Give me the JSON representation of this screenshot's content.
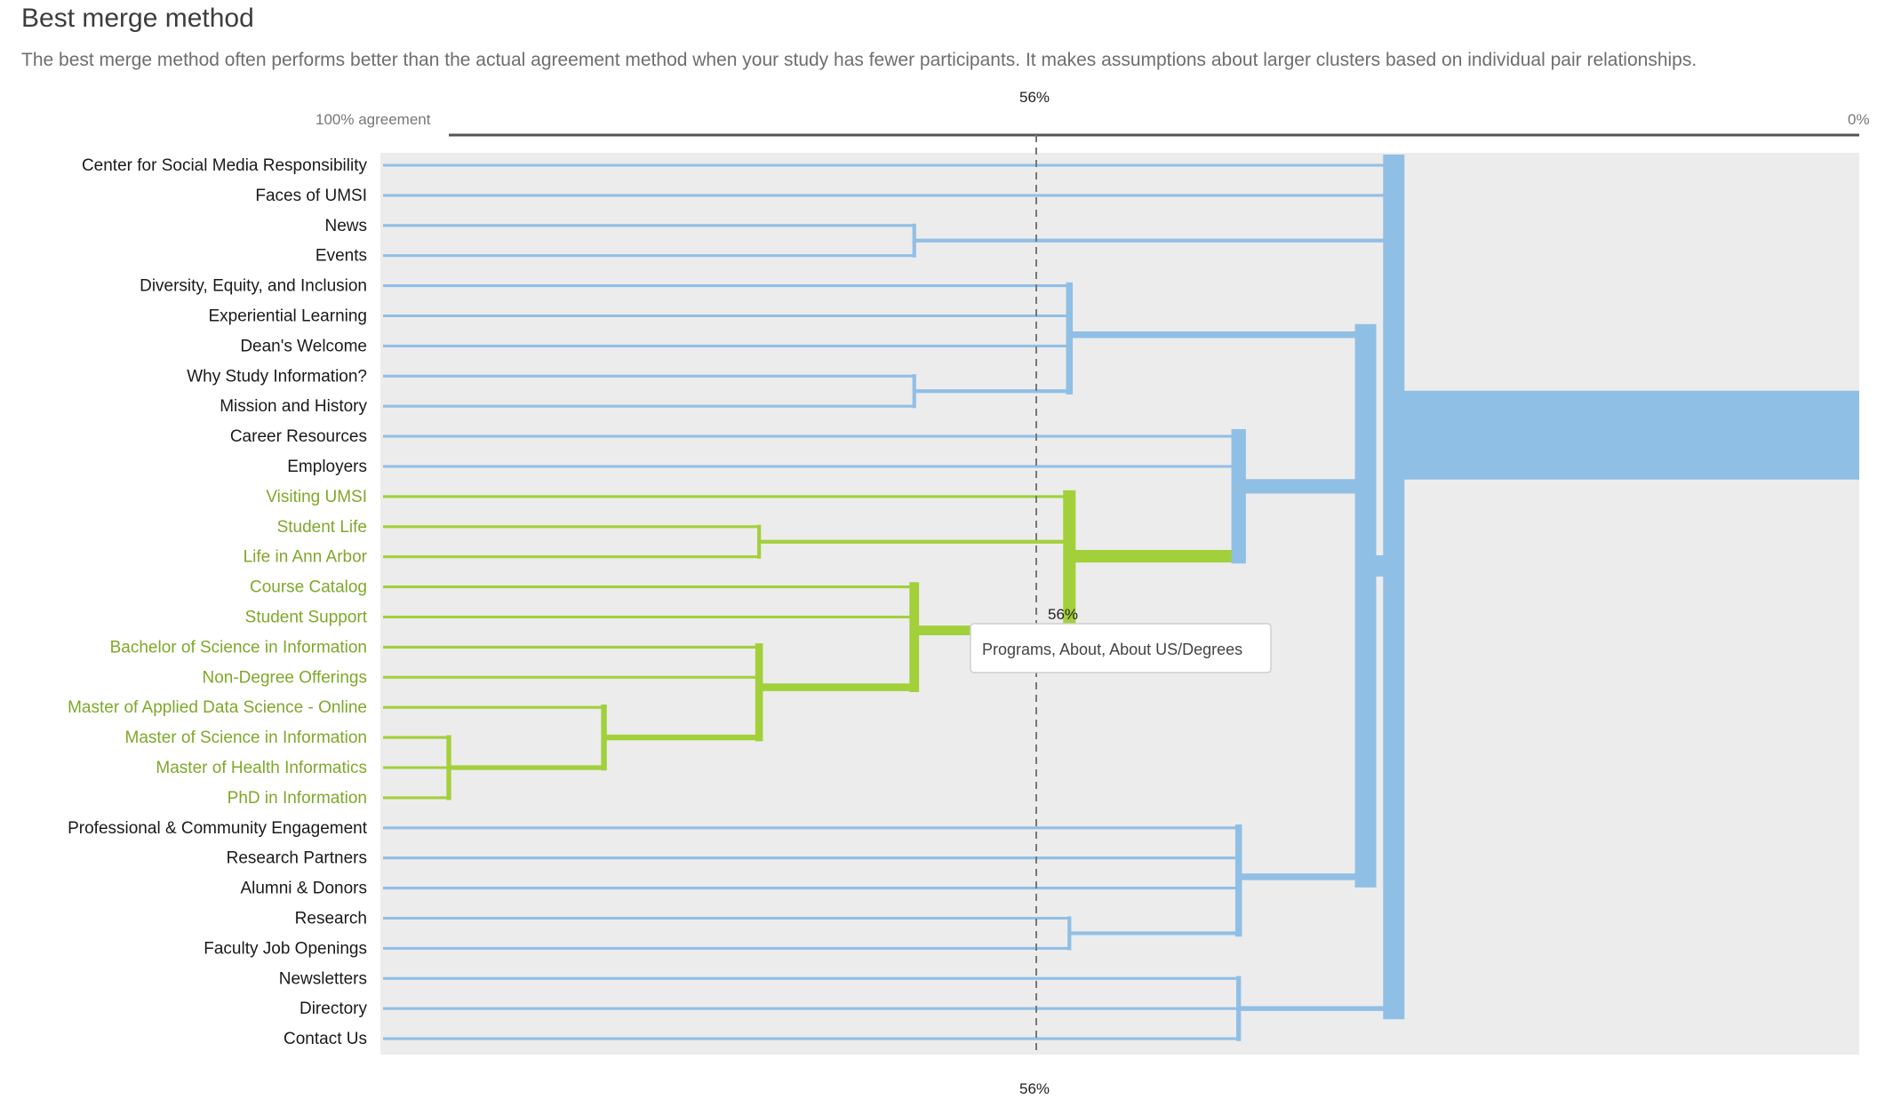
{
  "header": {
    "title": "Best merge method",
    "subtitle": "The best merge method often performs better than the actual agreement method when your study has fewer participants. It makes assumptions about larger clusters based on individual pair relationships."
  },
  "colors": {
    "default": "#90bfe6",
    "highlight": "#a2d03a",
    "label_default": "#1a1a1a",
    "label_highlight": "#7fa82a",
    "background": "#ececec"
  },
  "chart_data": {
    "type": "dendrogram",
    "axis": {
      "left_label": "100% agreement",
      "right_label": "0%",
      "min": 0,
      "max": 100
    },
    "cutoff": {
      "value": 56,
      "label_top": "56%",
      "label_bottom": "56%",
      "label_mid": "56%"
    },
    "tooltip": "Programs, About, About US/Degrees",
    "leaves": [
      {
        "label": "Center for Social Media Responsibility",
        "highlight": false
      },
      {
        "label": "Faces of UMSI",
        "highlight": false
      },
      {
        "label": "News",
        "highlight": false
      },
      {
        "label": "Events",
        "highlight": false
      },
      {
        "label": "Diversity, Equity, and Inclusion",
        "highlight": false
      },
      {
        "label": "Experiential Learning",
        "highlight": false
      },
      {
        "label": "Dean's Welcome",
        "highlight": false
      },
      {
        "label": "Why Study Information?",
        "highlight": false
      },
      {
        "label": "Mission and History",
        "highlight": false
      },
      {
        "label": "Career Resources",
        "highlight": false
      },
      {
        "label": "Employers",
        "highlight": false
      },
      {
        "label": "Visiting UMSI",
        "highlight": true
      },
      {
        "label": "Student Life",
        "highlight": true
      },
      {
        "label": "Life in Ann Arbor",
        "highlight": true
      },
      {
        "label": "Course Catalog",
        "highlight": true
      },
      {
        "label": "Student Support",
        "highlight": true
      },
      {
        "label": "Bachelor of Science in Information",
        "highlight": true
      },
      {
        "label": "Non-Degree Offerings",
        "highlight": true
      },
      {
        "label": "Master of Applied Data Science - Online",
        "highlight": true
      },
      {
        "label": "Master of Science in Information",
        "highlight": true
      },
      {
        "label": "Master of Health Informatics",
        "highlight": true
      },
      {
        "label": "PhD in Information",
        "highlight": true
      },
      {
        "label": "Professional & Community Engagement",
        "highlight": false
      },
      {
        "label": "Research Partners",
        "highlight": false
      },
      {
        "label": "Alumni & Donors",
        "highlight": false
      },
      {
        "label": "Research",
        "highlight": false
      },
      {
        "label": "Faculty Job Openings",
        "highlight": false
      },
      {
        "label": "Newsletters",
        "highlight": false
      },
      {
        "label": "Directory",
        "highlight": false
      },
      {
        "label": "Contact Us",
        "highlight": false
      }
    ],
    "merges": [
      {
        "id": "m1",
        "children": [
          19,
          20,
          21
        ],
        "agreement": 100,
        "highlight": true
      },
      {
        "id": "m2",
        "children": [
          18,
          "m1"
        ],
        "agreement": 89,
        "highlight": true
      },
      {
        "id": "m3",
        "children": [
          16,
          17,
          "m2"
        ],
        "agreement": 78,
        "highlight": true
      },
      {
        "id": "m4",
        "children": [
          14,
          15,
          "m3"
        ],
        "agreement": 67,
        "highlight": true
      },
      {
        "id": "m5",
        "children": [
          12,
          13
        ],
        "agreement": 78,
        "highlight": true
      },
      {
        "id": "m6",
        "children": [
          11,
          "m5",
          "m4"
        ],
        "agreement": 56,
        "highlight": true
      },
      {
        "id": "m7",
        "children": [
          2,
          3
        ],
        "agreement": 67,
        "highlight": false
      },
      {
        "id": "m8",
        "children": [
          7,
          8
        ],
        "agreement": 67,
        "highlight": false
      },
      {
        "id": "m9",
        "children": [
          4,
          5,
          6,
          "m8"
        ],
        "agreement": 56,
        "highlight": false
      },
      {
        "id": "m10",
        "children": [
          25,
          26
        ],
        "agreement": 56,
        "highlight": false
      },
      {
        "id": "m11",
        "children": [
          22,
          23,
          24,
          "m10"
        ],
        "agreement": 44,
        "highlight": false
      },
      {
        "id": "m12",
        "children": [
          27,
          28,
          29
        ],
        "agreement": 44,
        "highlight": false
      },
      {
        "id": "m13",
        "children": [
          9,
          10,
          "m6"
        ],
        "agreement": 44,
        "highlight": false
      },
      {
        "id": "m14",
        "children": [
          "m9",
          "m13",
          "m11"
        ],
        "agreement": 35,
        "highlight": false
      },
      {
        "id": "m15",
        "children": [
          0,
          1,
          "m7",
          "m14",
          "m12"
        ],
        "agreement": 33,
        "highlight": false
      }
    ]
  }
}
